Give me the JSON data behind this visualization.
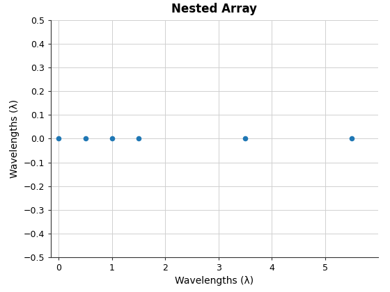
{
  "title": "Nested Array",
  "xlabel": "Wavelengths (λ)",
  "ylabel": "Wavelengths (λ)",
  "x": [
    0,
    0.5,
    1.0,
    1.5,
    3.5,
    5.5
  ],
  "y": [
    0,
    0,
    0,
    0,
    0,
    0
  ],
  "xlim": [
    -0.15,
    6.0
  ],
  "ylim": [
    -0.5,
    0.5
  ],
  "xticks": [
    0,
    1,
    2,
    3,
    4,
    5
  ],
  "yticks": [
    -0.5,
    -0.4,
    -0.3,
    -0.2,
    -0.1,
    0.0,
    0.1,
    0.2,
    0.3,
    0.4,
    0.5
  ],
  "marker_color": "#1f77b4",
  "marker_size": 30,
  "bg_color": "#ffffff",
  "grid_color": "#d0d0d0",
  "title_fontsize": 12,
  "label_fontsize": 10,
  "tick_fontsize": 9
}
